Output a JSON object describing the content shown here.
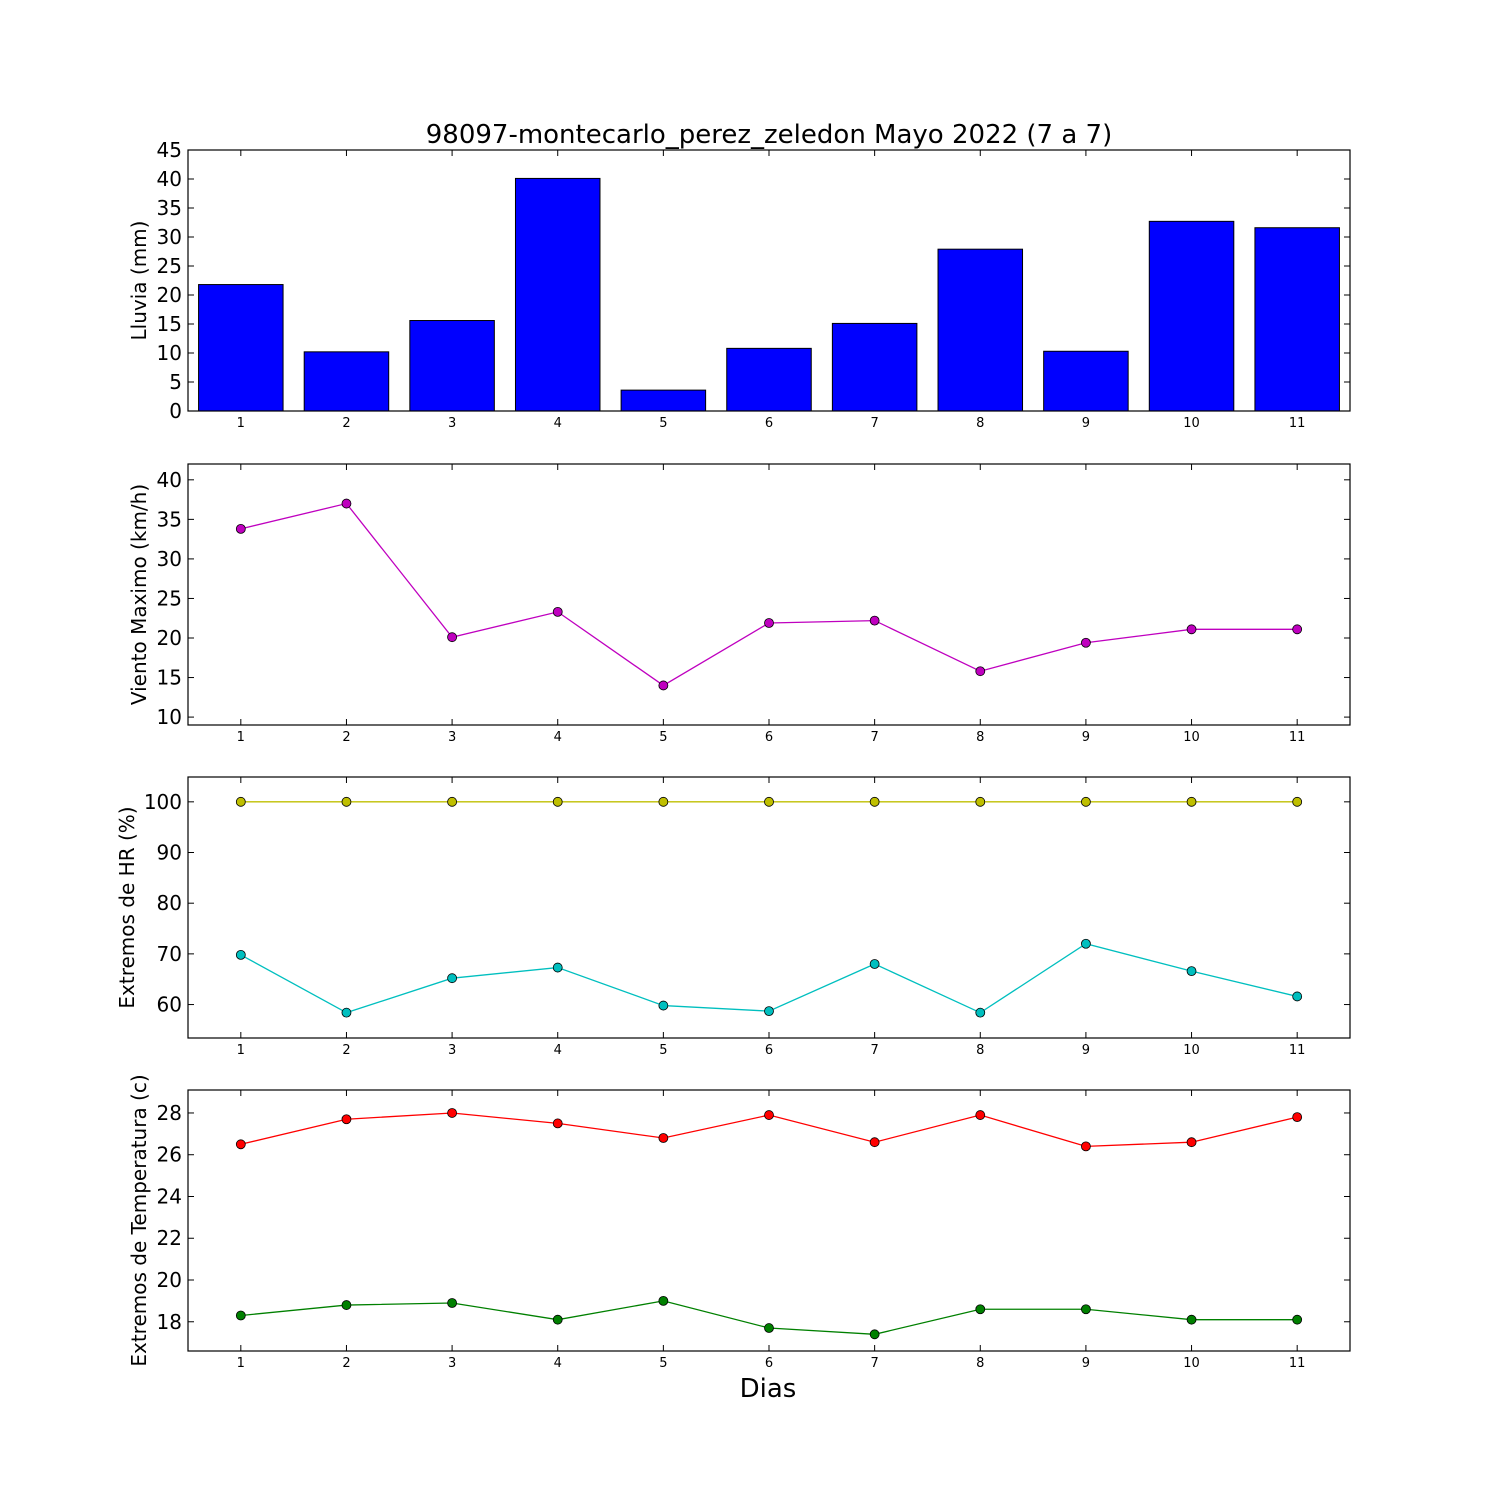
{
  "title": "98097-montecarlo_perez_zeledon Mayo 2022  (7 a 7)",
  "xlabel": "Dias",
  "chart_data": [
    {
      "type": "bar",
      "ylabel": "Lluvia (mm)",
      "x": [
        1,
        2,
        3,
        4,
        5,
        6,
        7,
        8,
        9,
        10,
        11
      ],
      "ylim": [
        0,
        45
      ],
      "yticks": [
        0,
        5,
        10,
        15,
        20,
        25,
        30,
        35,
        40,
        45
      ],
      "grid": false,
      "series": [
        {
          "values": [
            21.8,
            10.2,
            15.6,
            40.1,
            3.6,
            10.8,
            15.1,
            27.9,
            10.3,
            32.7,
            31.6
          ],
          "color": "#0000ff"
        }
      ]
    },
    {
      "type": "line",
      "ylabel": "Viento Maximo (km/h)",
      "x": [
        1,
        2,
        3,
        4,
        5,
        6,
        7,
        8,
        9,
        10,
        11
      ],
      "ylim": [
        9,
        42
      ],
      "yticks": [
        10,
        15,
        20,
        25,
        30,
        35,
        40
      ],
      "grid": false,
      "series": [
        {
          "values": [
            33.8,
            37.0,
            20.1,
            23.3,
            14.0,
            21.9,
            22.2,
            15.8,
            19.4,
            21.1,
            21.1
          ],
          "color": "#bf00bf"
        }
      ]
    },
    {
      "type": "line",
      "ylabel": "Extremos de HR (%)",
      "x": [
        1,
        2,
        3,
        4,
        5,
        6,
        7,
        8,
        9,
        10,
        11
      ],
      "ylim": [
        53.4,
        104.9
      ],
      "yticks": [
        60,
        70,
        80,
        90,
        100
      ],
      "grid": false,
      "series": [
        {
          "values": [
            100,
            100,
            100,
            100,
            100,
            100,
            100,
            100,
            100,
            100,
            100
          ],
          "color": "#bfbf00"
        },
        {
          "values": [
            69.8,
            58.4,
            65.2,
            67.3,
            59.8,
            58.7,
            68.0,
            58.4,
            72.0,
            66.6,
            61.6
          ],
          "color": "#00bfbf"
        }
      ]
    },
    {
      "type": "line",
      "ylabel": "Extremos de Temperatura (c)",
      "x": [
        1,
        2,
        3,
        4,
        5,
        6,
        7,
        8,
        9,
        10,
        11
      ],
      "ylim": [
        16.6,
        29.1
      ],
      "yticks": [
        18,
        20,
        22,
        24,
        26,
        28
      ],
      "grid": false,
      "series": [
        {
          "values": [
            26.5,
            27.7,
            28.0,
            27.5,
            26.8,
            27.9,
            26.6,
            27.9,
            26.4,
            26.6,
            27.8
          ],
          "color": "#ff0000"
        },
        {
          "values": [
            18.3,
            18.8,
            18.9,
            18.1,
            19.0,
            17.7,
            17.4,
            18.6,
            18.6,
            18.1,
            18.1
          ],
          "color": "#008000"
        }
      ]
    }
  ]
}
